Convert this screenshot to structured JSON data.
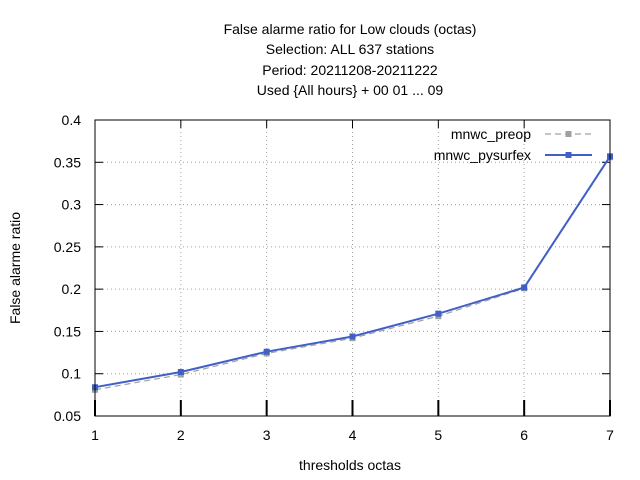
{
  "chart_data": {
    "type": "line",
    "title_lines": [
      "False alarme ratio  for Low clouds (octas)",
      "Selection: ALL    637 stations",
      "Period: 20211208-20211222",
      "Used {All hours} + 00 01 ... 09"
    ],
    "xlabel": "thresholds octas",
    "ylabel": "False alarme ratio",
    "x": [
      1,
      2,
      3,
      4,
      5,
      6,
      7
    ],
    "xlim": [
      1,
      7
    ],
    "ylim": [
      0.05,
      0.4
    ],
    "yticks": [
      0.05,
      0.1,
      0.15,
      0.2,
      0.25,
      0.3,
      0.35,
      0.4
    ],
    "ytick_labels": [
      "0.05",
      "0.1",
      "0.15",
      "0.2",
      "0.25",
      "0.3",
      "0.35",
      "0.4"
    ],
    "xtick_labels": [
      "1",
      "2",
      "3",
      "4",
      "5",
      "6",
      "7"
    ],
    "grid": true,
    "legend_position": "top-right",
    "series": [
      {
        "name": "mnwc_preop",
        "values": [
          0.081,
          0.099,
          0.124,
          0.142,
          0.168,
          0.201,
          0.356
        ],
        "color": "#a0a0a0",
        "dashed": true
      },
      {
        "name": "mnwc_pysurfex",
        "values": [
          0.084,
          0.102,
          0.126,
          0.144,
          0.171,
          0.202,
          0.357
        ],
        "color": "#4060c8",
        "dashed": false
      }
    ]
  }
}
